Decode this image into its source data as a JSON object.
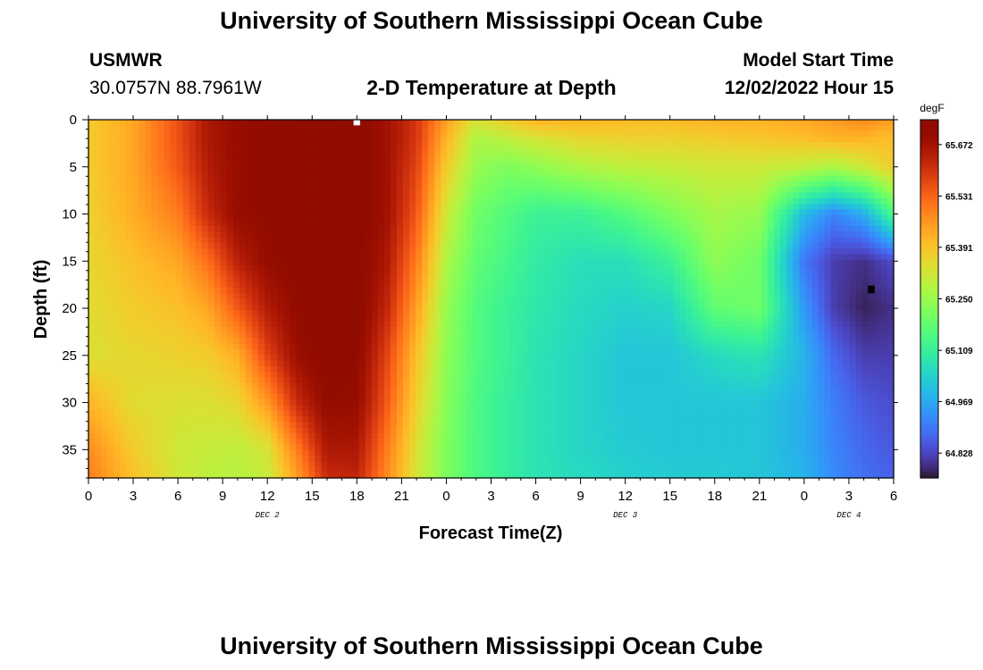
{
  "header": {
    "title": "University of Southern Mississippi Ocean Cube",
    "station_id": "USMWR",
    "station_coords": "30.0757N  88.7961W",
    "chart_title": "2-D Temperature at Depth",
    "model_start_label": "Model Start Time",
    "model_start_value": "12/02/2022 Hour 15"
  },
  "footer": {
    "title": "University of Southern Mississippi Ocean Cube"
  },
  "chart_data": {
    "type": "heatmap",
    "title": "2-D Temperature at Depth",
    "xlabel": "Forecast Time(Z)",
    "ylabel": "Depth (ft)",
    "x_unit": "hours from Dec 2 00Z",
    "xlim": [
      0,
      54
    ],
    "ylim": [
      0,
      38
    ],
    "y_inverted": true,
    "x_tick_labels": [
      "0",
      "3",
      "6",
      "9",
      "12",
      "15",
      "18",
      "21",
      "0",
      "3",
      "6",
      "9",
      "12",
      "15",
      "18",
      "21",
      "0",
      "3",
      "6"
    ],
    "x_ticks": [
      0,
      3,
      6,
      9,
      12,
      15,
      18,
      21,
      24,
      27,
      30,
      33,
      36,
      39,
      42,
      45,
      48,
      51,
      54
    ],
    "y_ticks": [
      0,
      5,
      10,
      15,
      20,
      25,
      30,
      35
    ],
    "date_labels": [
      {
        "x": 12,
        "label": "DEC 2"
      },
      {
        "x": 36,
        "label": "DEC 3"
      },
      {
        "x": 51,
        "label": "DEC 4"
      }
    ],
    "colorbar": {
      "unit": "degF",
      "range": [
        64.76,
        65.74
      ],
      "tick_labels": [
        "65.672",
        "65.531",
        "65.391",
        "65.250",
        "65.109",
        "64.969",
        "64.828"
      ],
      "colormap": "turbo"
    },
    "x_hours": [
      0,
      3,
      6,
      8,
      10,
      12,
      14,
      16,
      18,
      20,
      22,
      24,
      26,
      28,
      30,
      33,
      36,
      39,
      42,
      45,
      48,
      50,
      52,
      54
    ],
    "depths": [
      0,
      2,
      5,
      10,
      15,
      20,
      25,
      30,
      35,
      38
    ],
    "values": [
      [
        65.38,
        65.44,
        65.56,
        65.66,
        65.7,
        65.72,
        65.74,
        65.74,
        65.73,
        65.68,
        65.6,
        65.45,
        65.33,
        65.38,
        65.42,
        65.42,
        65.41,
        65.41,
        65.42,
        65.42,
        65.44,
        65.46,
        65.48,
        65.45
      ],
      [
        65.38,
        65.44,
        65.56,
        65.66,
        65.7,
        65.72,
        65.74,
        65.74,
        65.73,
        65.68,
        65.6,
        65.42,
        65.28,
        65.3,
        65.33,
        65.36,
        65.37,
        65.37,
        65.38,
        65.39,
        65.4,
        65.42,
        65.42,
        65.4
      ],
      [
        65.38,
        65.44,
        65.55,
        65.65,
        65.7,
        65.72,
        65.74,
        65.74,
        65.73,
        65.68,
        65.58,
        65.38,
        65.25,
        65.22,
        65.24,
        65.28,
        65.3,
        65.31,
        65.32,
        65.32,
        65.3,
        65.28,
        65.32,
        65.38
      ],
      [
        65.37,
        65.43,
        65.5,
        65.62,
        65.7,
        65.72,
        65.74,
        65.74,
        65.73,
        65.68,
        65.55,
        65.32,
        65.2,
        65.16,
        65.12,
        65.12,
        65.16,
        65.22,
        65.27,
        65.25,
        65.0,
        64.92,
        64.98,
        65.15
      ],
      [
        65.36,
        65.4,
        65.44,
        65.52,
        65.64,
        65.7,
        65.73,
        65.74,
        65.73,
        65.66,
        65.5,
        65.28,
        65.18,
        65.14,
        65.1,
        65.07,
        65.07,
        65.12,
        65.24,
        65.2,
        64.9,
        64.82,
        64.8,
        64.84
      ],
      [
        65.35,
        65.38,
        65.4,
        65.44,
        65.55,
        65.65,
        65.71,
        65.74,
        65.73,
        65.63,
        65.45,
        65.25,
        65.16,
        65.12,
        65.09,
        65.06,
        65.04,
        65.05,
        65.18,
        65.2,
        64.95,
        64.82,
        64.78,
        64.8
      ],
      [
        65.34,
        65.36,
        65.37,
        65.38,
        65.43,
        65.58,
        65.69,
        65.73,
        65.72,
        65.58,
        65.4,
        65.24,
        65.16,
        65.12,
        65.08,
        65.05,
        65.02,
        65.02,
        65.06,
        65.08,
        64.99,
        64.88,
        64.82,
        64.82
      ],
      [
        65.42,
        65.35,
        65.34,
        65.34,
        65.36,
        65.46,
        65.62,
        65.71,
        65.7,
        65.55,
        65.37,
        65.23,
        65.15,
        65.11,
        65.08,
        65.05,
        65.02,
        65.02,
        65.02,
        65.02,
        64.98,
        64.91,
        64.86,
        64.84
      ],
      [
        65.48,
        65.38,
        65.32,
        65.31,
        65.3,
        65.33,
        65.5,
        65.66,
        65.66,
        65.5,
        65.34,
        65.22,
        65.15,
        65.11,
        65.08,
        65.05,
        65.03,
        65.02,
        65.02,
        65.02,
        64.98,
        64.92,
        64.88,
        64.86
      ],
      [
        65.5,
        65.4,
        65.32,
        65.3,
        65.29,
        65.31,
        65.45,
        65.62,
        65.63,
        65.48,
        65.33,
        65.22,
        65.15,
        65.11,
        65.08,
        65.06,
        65.04,
        65.03,
        65.03,
        65.02,
        64.99,
        64.93,
        64.89,
        64.87
      ]
    ],
    "markers": [
      {
        "x": 18,
        "depth": 0.2,
        "color": "#ffffff"
      },
      {
        "x": 52.5,
        "depth": 18,
        "color": "#000000"
      }
    ]
  }
}
